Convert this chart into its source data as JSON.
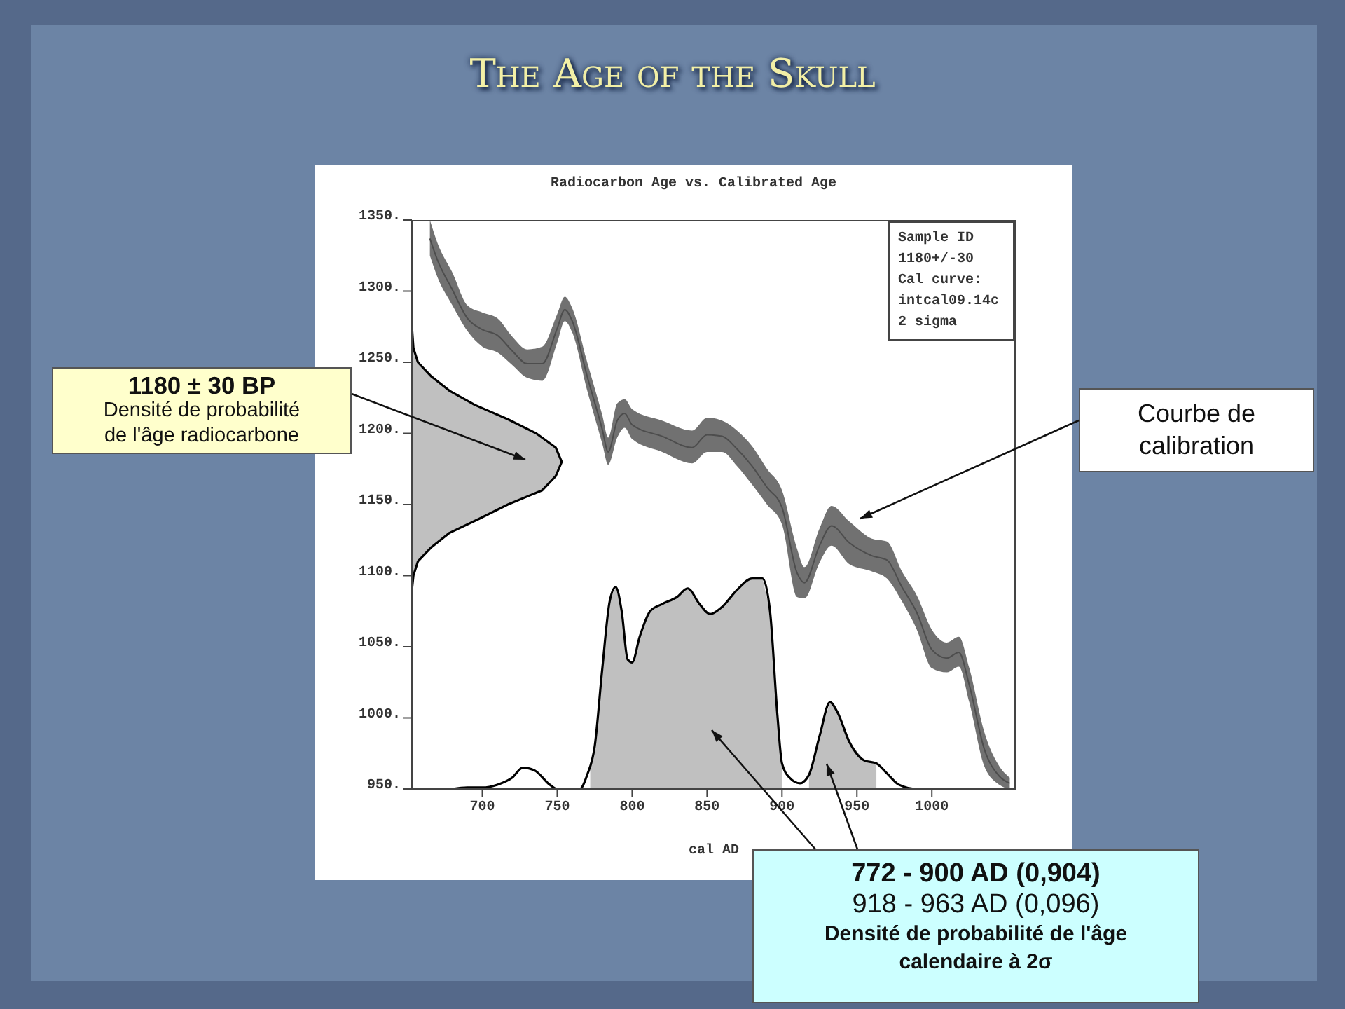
{
  "chart_data": {
    "type": "line",
    "title": "The Age of the Skull",
    "subtitle": "Radiocarbon Age vs. Calibrated Age",
    "xlabel": "cal AD",
    "xlim": [
      653,
      1056
    ],
    "xticks": [
      700,
      750,
      800,
      850,
      900,
      950,
      1000
    ],
    "ylim": [
      950,
      1350
    ],
    "yticks": [
      {
        "value": 950,
        "label": "950."
      },
      {
        "value": 1000,
        "label": "1000."
      },
      {
        "value": 1050,
        "label": "1050."
      },
      {
        "value": 1100,
        "label": "1100."
      },
      {
        "value": 1150,
        "label": "1150."
      },
      {
        "value": 1200,
        "label": "1200."
      },
      {
        "value": 1250,
        "label": "1250."
      },
      {
        "value": 1300,
        "label": "1300."
      },
      {
        "value": 1350,
        "label": "1350."
      }
    ],
    "grid": false,
    "marker": "none",
    "line_style": "solid",
    "series": [
      {
        "color": "#4d4d4d",
        "x": [
          665,
          670,
          680,
          690,
          700,
          710,
          720,
          730,
          740,
          750,
          755,
          760,
          770,
          780,
          784,
          790,
          795,
          800,
          820,
          840,
          850,
          860,
          870,
          880,
          890,
          900,
          910,
          915,
          925,
          933,
          945,
          960,
          970,
          980,
          990,
          1000,
          1010,
          1018,
          1025,
          1035,
          1045,
          1052
        ],
        "values": [
          1337,
          1322,
          1301,
          1281,
          1273,
          1269,
          1258,
          1249,
          1249,
          1274,
          1287,
          1279,
          1240,
          1203,
          1187,
          1209,
          1214,
          1206,
          1198,
          1190,
          1199,
          1198,
          1189,
          1177,
          1162,
          1148,
          1102,
          1095,
          1121,
          1135,
          1123,
          1114,
          1111,
          1092,
          1074,
          1048,
          1042,
          1046,
          1023,
          978,
          959,
          954
        ],
        "upper": [
          1350,
          1334,
          1313,
          1290,
          1285,
          1281,
          1268,
          1259,
          1261,
          1284,
          1296,
          1288,
          1250,
          1213,
          1197,
          1221,
          1224,
          1217,
          1209,
          1202,
          1211,
          1209,
          1202,
          1191,
          1175,
          1160,
          1119,
          1106,
          1133,
          1149,
          1138,
          1126,
          1124,
          1103,
          1086,
          1062,
          1053,
          1057,
          1035,
          990,
          966,
          958
        ],
        "lower": [
          1325,
          1310,
          1290,
          1272,
          1261,
          1257,
          1248,
          1239,
          1237,
          1264,
          1279,
          1271,
          1230,
          1193,
          1178,
          1197,
          1204,
          1196,
          1187,
          1179,
          1187,
          1187,
          1177,
          1164,
          1150,
          1136,
          1085,
          1084,
          1109,
          1121,
          1108,
          1103,
          1098,
          1082,
          1062,
          1035,
          1032,
          1036,
          1011,
          966,
          953,
          950
        ]
      },
      {
        "type": "area",
        "color": "#c0c0c0",
        "x": [
          772,
          775,
          780,
          785,
          789,
          793,
          797,
          800,
          805,
          812,
          820,
          830,
          837,
          845,
          852,
          860,
          870,
          880,
          887,
          892,
          897,
          900,
          909,
          918,
          925,
          932,
          937,
          945,
          955,
          963
        ],
        "values": [
          968,
          980,
          1034,
          1082,
          1092,
          1075,
          1041,
          1039,
          1057,
          1075,
          1080,
          1085,
          1091,
          1080,
          1073,
          1078,
          1090,
          1098,
          1098,
          1075,
          1001,
          968,
          null,
          960,
          987,
          1011,
          1004,
          983,
          970,
          968
        ]
      },
      {
        "color": "#000000",
        "x": [
          680,
          690,
          700,
          710,
          720,
          727,
          735,
          745,
          750,
          765,
          770,
          775,
          780,
          785,
          789,
          793,
          797,
          800,
          805,
          812,
          820,
          830,
          837,
          845,
          852,
          860,
          870,
          880,
          887,
          892,
          897,
          900,
          905,
          912,
          918,
          925,
          932,
          937,
          945,
          955,
          963,
          970,
          978,
          990,
          1000
        ],
        "values": [
          950,
          951,
          951,
          953,
          958,
          965,
          963,
          953,
          950,
          950,
          960,
          980,
          1034,
          1082,
          1092,
          1075,
          1041,
          1039,
          1057,
          1075,
          1080,
          1085,
          1091,
          1080,
          1073,
          1078,
          1090,
          1098,
          1098,
          1075,
          1001,
          968,
          958,
          954,
          960,
          987,
          1011,
          1004,
          983,
          970,
          968,
          961,
          953,
          950,
          950
        ]
      },
      {
        "color": "#000000",
        "x": [
          653,
          654,
          657,
          666,
          678,
          698,
          717,
          740,
          749,
          753,
          749,
          736,
          717,
          695,
          678,
          666,
          657,
          654,
          653
        ],
        "values": [
          1090,
          1100,
          1110,
          1120,
          1130,
          1140,
          1150,
          1160,
          1170,
          1180,
          1190,
          1200,
          1210,
          1220,
          1230,
          1240,
          1250,
          1260,
          1275
        ]
      }
    ],
    "annotations": [
      "Sample ID\n1180+/-30\nCal curve:\nintcal09.14c\n2 sigma",
      "1180 ± 30 BP\nDensité de probabilité\nde l'âge radiocarbone",
      "Courbe de\ncalibration",
      "772 - 900 AD (0,904)",
      "918 - 963 AD (0,096)",
      "Densité de probabilité de l'âge\ncalendaire à 2σ"
    ]
  }
}
